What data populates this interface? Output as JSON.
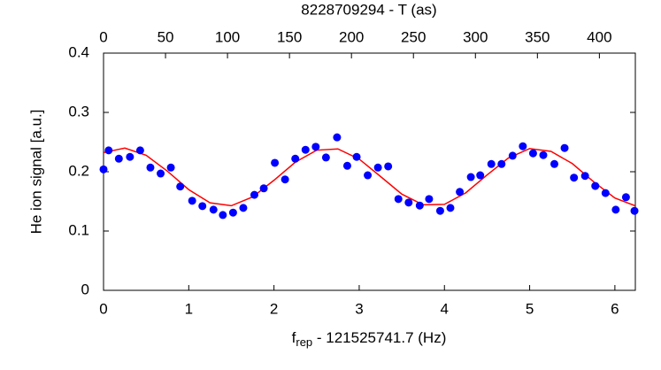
{
  "chart_data": {
    "type": "scatter",
    "xlabel": [
      "f",
      "rep",
      " - 121525741.7 (Hz)"
    ],
    "ylabel": "He ion signal [a.u.]",
    "x2label": "8228709294 - T (as)",
    "xlim": [
      0,
      6.24
    ],
    "xticks": [
      0,
      1,
      2,
      3,
      4,
      5,
      6
    ],
    "x2lim": [
      0,
      429
    ],
    "x2ticks": [
      0,
      50,
      100,
      150,
      200,
      250,
      300,
      350,
      400
    ],
    "ylim": [
      0,
      0.4
    ],
    "yticks": [
      0,
      0.1,
      0.2,
      0.3,
      0.4
    ],
    "points": {
      "color": "#0000ff",
      "x": [
        0,
        0.06,
        0.18,
        0.31,
        0.43,
        0.55,
        0.67,
        0.79,
        0.9,
        1.04,
        1.16,
        1.29,
        1.4,
        1.52,
        1.64,
        1.77,
        1.88,
        2.01,
        2.13,
        2.25,
        2.37,
        2.49,
        2.61,
        2.74,
        2.86,
        2.97,
        3.1,
        3.22,
        3.34,
        3.46,
        3.58,
        3.71,
        3.82,
        3.95,
        4.07,
        4.18,
        4.31,
        4.42,
        4.55,
        4.67,
        4.8,
        4.92,
        5.04,
        5.16,
        5.29,
        5.41,
        5.52,
        5.65,
        5.77,
        5.89,
        6.01,
        6.13,
        6.23
      ],
      "y": [
        0.204,
        0.236,
        0.222,
        0.225,
        0.236,
        0.207,
        0.197,
        0.207,
        0.175,
        0.151,
        0.142,
        0.136,
        0.127,
        0.131,
        0.139,
        0.161,
        0.172,
        0.215,
        0.187,
        0.222,
        0.237,
        0.242,
        0.224,
        0.258,
        0.21,
        0.225,
        0.194,
        0.207,
        0.209,
        0.154,
        0.148,
        0.143,
        0.154,
        0.134,
        0.139,
        0.166,
        0.191,
        0.194,
        0.213,
        0.213,
        0.227,
        0.243,
        0.231,
        0.228,
        0.213,
        0.24,
        0.19,
        0.193,
        0.176,
        0.164,
        0.136,
        0.157,
        0.134
      ]
    },
    "fit": {
      "color": "#ff0000",
      "x": [
        0,
        0.25,
        0.5,
        0.75,
        1,
        1.25,
        1.5,
        1.75,
        2,
        2.25,
        2.5,
        2.75,
        3,
        3.25,
        3.5,
        3.75,
        4,
        4.25,
        4.5,
        4.75,
        5,
        5.25,
        5.5,
        5.75,
        6,
        6.24
      ],
      "y": [
        0.2323,
        0.2399,
        0.2277,
        0.2008,
        0.1698,
        0.1475,
        0.1427,
        0.1575,
        0.1856,
        0.216,
        0.2363,
        0.2385,
        0.2213,
        0.192,
        0.1622,
        0.1442,
        0.1449,
        0.1644,
        0.1945,
        0.2231,
        0.239,
        0.2343,
        0.2138,
        0.1831,
        0.1556,
        0.1425
      ]
    }
  }
}
